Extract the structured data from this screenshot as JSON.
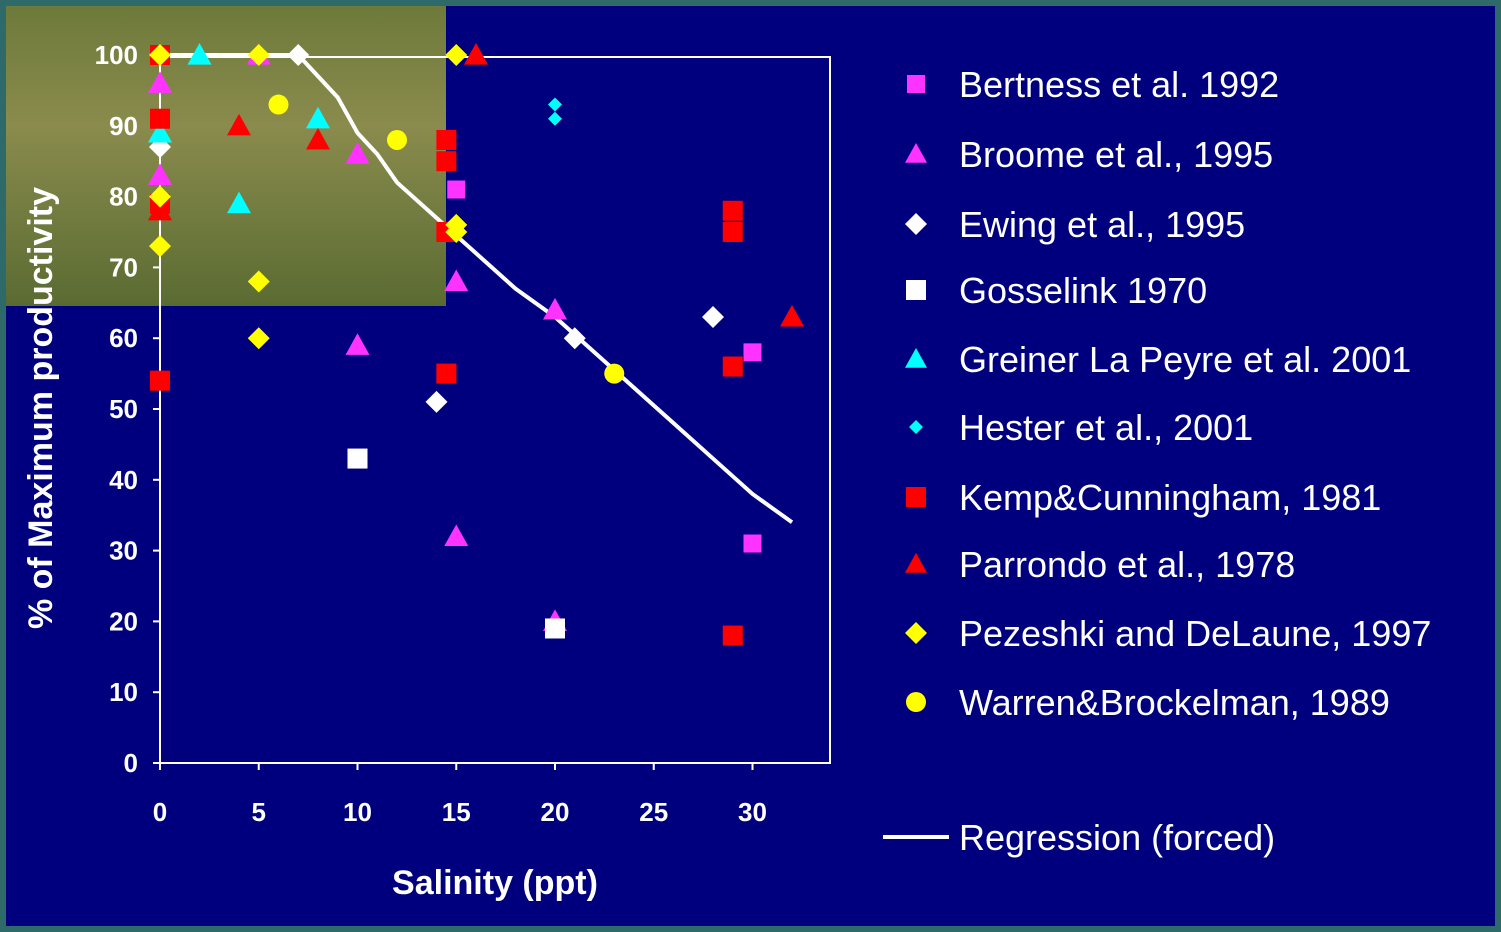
{
  "chart_data": {
    "type": "scatter",
    "xlabel": "Salinity (ppt)",
    "ylabel": "% of Maximum productivity",
    "xlim": [
      0,
      34
    ],
    "ylim": [
      0,
      100
    ],
    "xticks": [
      0,
      5,
      10,
      15,
      20,
      25,
      30
    ],
    "yticks": [
      0,
      10,
      20,
      30,
      40,
      50,
      60,
      70,
      80,
      90,
      100
    ],
    "grid": false,
    "legend_position": "right",
    "series": [
      {
        "name": "Bertness et al. 1992",
        "marker": "square",
        "color": "#ff33ff",
        "size": 18,
        "points": [
          [
            0,
            100
          ],
          [
            15,
            81
          ],
          [
            30,
            58
          ],
          [
            30,
            31
          ],
          [
            20,
            19
          ]
        ]
      },
      {
        "name": "Broome et al., 1995",
        "marker": "triangle",
        "color": "#ff33ff",
        "size": 24,
        "points": [
          [
            0,
            96
          ],
          [
            0,
            83
          ],
          [
            5,
            100
          ],
          [
            10,
            86
          ],
          [
            10,
            59
          ],
          [
            15,
            68
          ],
          [
            15,
            32
          ],
          [
            20,
            64
          ],
          [
            20,
            20
          ]
        ]
      },
      {
        "name": "Ewing et al., 1995",
        "marker": "diamond",
        "color": "#ffffff",
        "size": 22,
        "points": [
          [
            0,
            87
          ],
          [
            7,
            100
          ],
          [
            14,
            51
          ],
          [
            21,
            60
          ],
          [
            28,
            63
          ]
        ]
      },
      {
        "name": "Gosselink 1970",
        "marker": "square",
        "color": "#ffffff",
        "size": 20,
        "points": [
          [
            10,
            43
          ],
          [
            20,
            19
          ]
        ]
      },
      {
        "name": "Greiner La Peyre et al. 2001",
        "marker": "triangle",
        "color": "#00ffff",
        "size": 24,
        "points": [
          [
            0,
            89
          ],
          [
            2,
            100
          ],
          [
            4,
            79
          ],
          [
            8,
            91
          ]
        ]
      },
      {
        "name": "Hester et al., 2001",
        "marker": "diamond",
        "color": "#00ffff",
        "size": 14,
        "points": [
          [
            20,
            93
          ],
          [
            20,
            91
          ]
        ]
      },
      {
        "name": "Kemp&Cunningham, 1981",
        "marker": "square",
        "color": "#ff0000",
        "size": 20,
        "points": [
          [
            0,
            100
          ],
          [
            0,
            91
          ],
          [
            0,
            79
          ],
          [
            0,
            54
          ],
          [
            14.5,
            88
          ],
          [
            14.5,
            85
          ],
          [
            14.5,
            75
          ],
          [
            14.5,
            55
          ],
          [
            29,
            78
          ],
          [
            29,
            75
          ],
          [
            29,
            56
          ],
          [
            29,
            18
          ]
        ]
      },
      {
        "name": "Parrondo et al., 1978",
        "marker": "triangle",
        "color": "#ff0000",
        "size": 24,
        "points": [
          [
            0,
            78
          ],
          [
            4,
            90
          ],
          [
            8,
            88
          ],
          [
            16,
            100
          ],
          [
            32,
            63
          ]
        ]
      },
      {
        "name": "Pezeshki and DeLaune, 1997",
        "marker": "diamond",
        "color": "#ffff00",
        "size": 22,
        "points": [
          [
            0,
            100
          ],
          [
            0,
            80
          ],
          [
            0,
            73
          ],
          [
            5,
            100
          ],
          [
            5,
            68
          ],
          [
            5,
            60
          ],
          [
            15,
            100
          ],
          [
            15,
            76
          ],
          [
            15,
            75
          ]
        ]
      },
      {
        "name": "Warren&Brockelman, 1989",
        "marker": "circle",
        "color": "#ffff00",
        "size": 20,
        "points": [
          [
            6,
            93
          ],
          [
            12,
            88
          ],
          [
            23,
            55
          ]
        ]
      }
    ],
    "regression": {
      "name": "Regression (forced)",
      "color": "#ffffff",
      "points": [
        [
          0,
          100
        ],
        [
          7,
          100
        ],
        [
          9,
          94
        ],
        [
          10,
          89
        ],
        [
          11,
          86
        ],
        [
          12,
          82
        ],
        [
          14,
          77
        ],
        [
          16,
          72
        ],
        [
          18,
          67
        ],
        [
          20,
          63
        ],
        [
          22,
          58
        ],
        [
          24,
          53
        ],
        [
          26,
          48
        ],
        [
          28,
          43
        ],
        [
          30,
          38
        ],
        [
          32,
          34
        ]
      ]
    }
  }
}
